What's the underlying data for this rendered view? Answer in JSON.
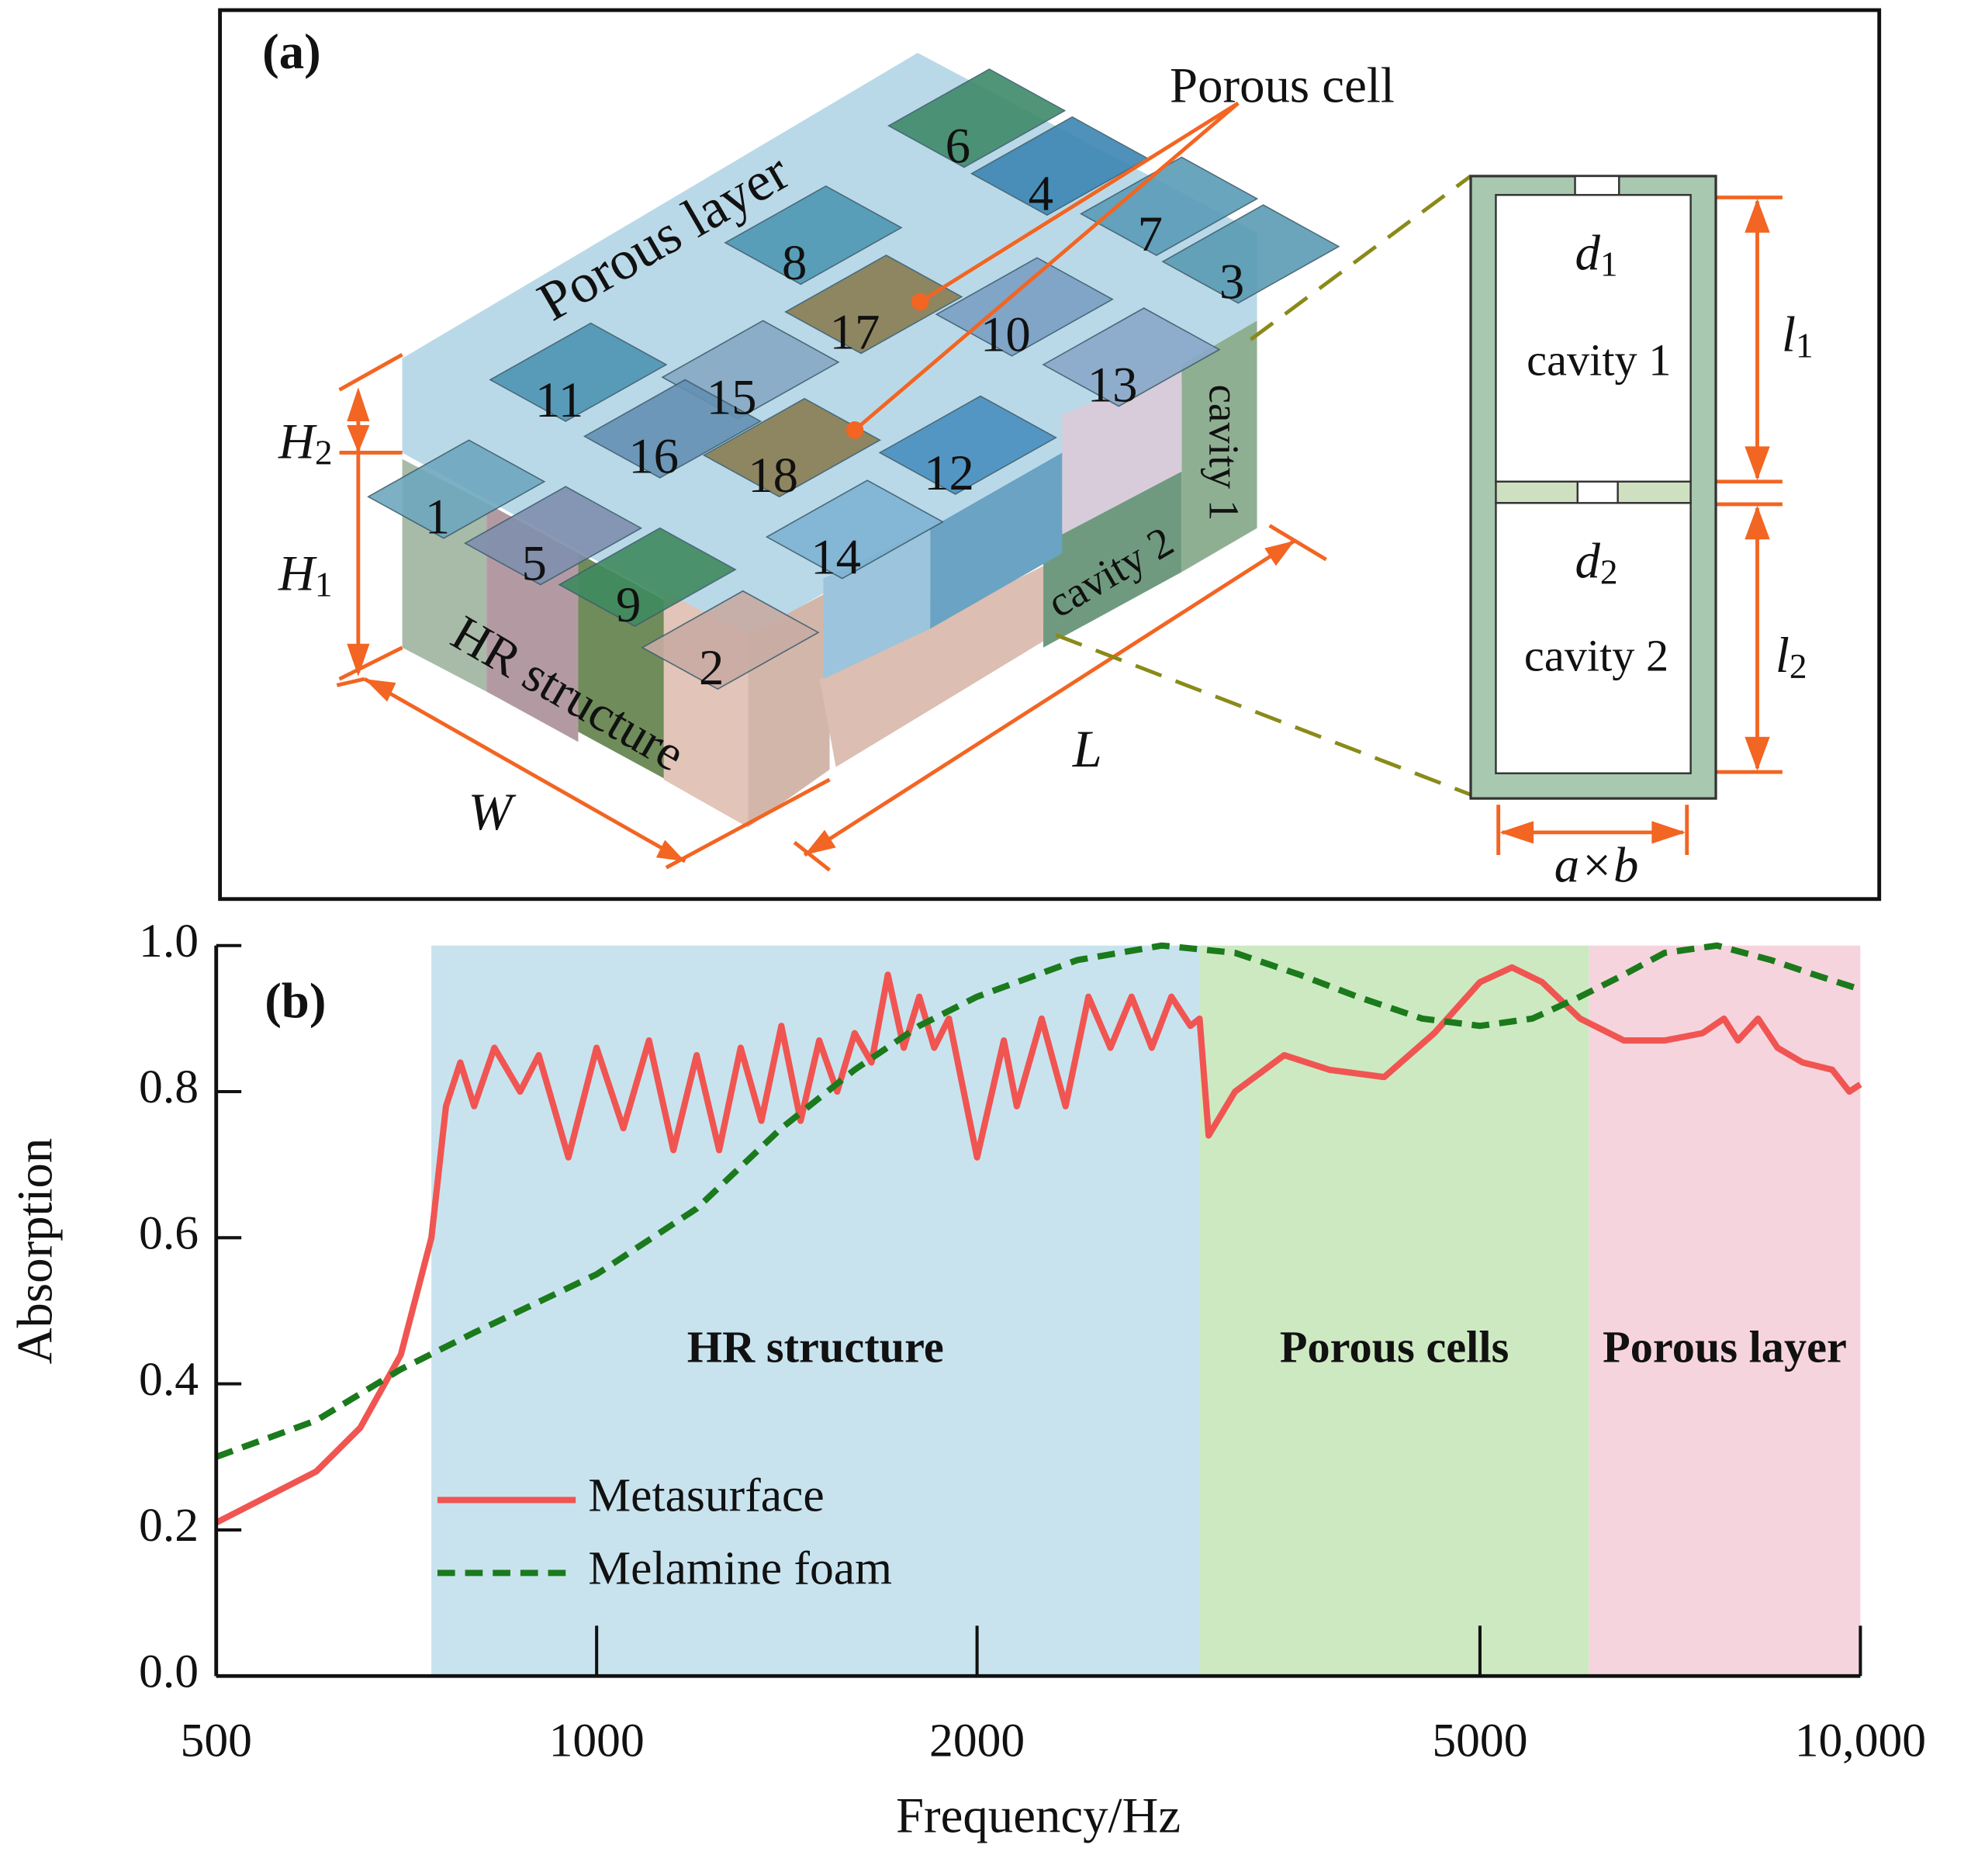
{
  "diagram": {
    "panel_label": "(a)",
    "porous_cell": "Porous cell",
    "porous_layer": "Porous layer",
    "hr_structure": "HR structure",
    "cells": [
      "1",
      "2",
      "3",
      "4",
      "5",
      "6",
      "7",
      "8",
      "9",
      "10",
      "11",
      "12",
      "13",
      "14",
      "15",
      "16",
      "17",
      "18"
    ],
    "cavity_1": "cavity 1",
    "cavity_2": "cavity 2",
    "H2": {
      "main": "H",
      "sub": "2"
    },
    "H1": {
      "main": "H",
      "sub": "1"
    },
    "W": "W",
    "L": "L",
    "detail": {
      "d1": {
        "main": "d",
        "sub": "1"
      },
      "cavity_1": "cavity 1",
      "l1": {
        "main": "l",
        "sub": "1"
      },
      "d2": {
        "main": "d",
        "sub": "2"
      },
      "cavity_2": "cavity 2",
      "l2": {
        "main": "l",
        "sub": "2"
      },
      "size": "a×b"
    }
  },
  "chart_data": {
    "type": "line",
    "panel_label": "(b)",
    "x_label": "Frequency/Hz",
    "y_label": "Absorption",
    "xscale": "log",
    "xlim": [
      500,
      10000
    ],
    "xticks": [
      500,
      1000,
      2000,
      5000,
      {
        "value": 10000,
        "label": "10,000"
      }
    ],
    "ylim": [
      0,
      1
    ],
    "yticks": [
      {
        "value": 0,
        "label": "0.0"
      },
      0.2,
      0.4,
      0.6,
      0.8,
      {
        "value": 1,
        "label": "1.0"
      }
    ],
    "legend": "lower left",
    "regions": [
      {
        "label": "HR structure",
        "from": 740,
        "to": 3000,
        "color": "#c8e3ee"
      },
      {
        "label": "Porous cells",
        "from": 3000,
        "to": 6100,
        "color": "#cde9c2"
      },
      {
        "label": "Porous layer",
        "from": 6100,
        "to": 10000,
        "color": "#f6d4de"
      }
    ],
    "series": [
      {
        "name": "Metasurface",
        "color": "#f05552",
        "style": "solid",
        "x": [
          500,
          600,
          650,
          700,
          740,
          760,
          780,
          800,
          830,
          870,
          900,
          950,
          1000,
          1050,
          1100,
          1150,
          1200,
          1250,
          1300,
          1350,
          1400,
          1450,
          1500,
          1550,
          1600,
          1650,
          1700,
          1750,
          1800,
          1850,
          1900,
          2000,
          2100,
          2150,
          2250,
          2350,
          2450,
          2550,
          2650,
          2750,
          2850,
          2950,
          3000,
          3050,
          3200,
          3500,
          3800,
          4200,
          4600,
          5000,
          5300,
          5600,
          6000,
          6500,
          7000,
          7500,
          7800,
          8000,
          8300,
          8600,
          9000,
          9500,
          9800,
          10000
        ],
        "values": [
          0.21,
          0.28,
          0.34,
          0.44,
          0.6,
          0.78,
          0.84,
          0.78,
          0.86,
          0.8,
          0.85,
          0.71,
          0.86,
          0.75,
          0.87,
          0.72,
          0.85,
          0.72,
          0.86,
          0.76,
          0.89,
          0.76,
          0.87,
          0.8,
          0.88,
          0.84,
          0.96,
          0.86,
          0.93,
          0.86,
          0.9,
          0.71,
          0.87,
          0.78,
          0.9,
          0.78,
          0.93,
          0.86,
          0.93,
          0.86,
          0.93,
          0.89,
          0.9,
          0.74,
          0.8,
          0.85,
          0.83,
          0.82,
          0.88,
          0.95,
          0.97,
          0.95,
          0.9,
          0.87,
          0.87,
          0.88,
          0.9,
          0.87,
          0.9,
          0.86,
          0.84,
          0.83,
          0.8,
          0.81
        ]
      },
      {
        "name": "Melamine foam",
        "color": "#1b7a1b",
        "style": "dashed",
        "x": [
          500,
          600,
          700,
          800,
          1000,
          1200,
          1400,
          1600,
          1800,
          2000,
          2400,
          2800,
          3200,
          3600,
          4000,
          4500,
          5000,
          5500,
          6000,
          6500,
          7000,
          7700,
          8500,
          9200,
          10000
        ],
        "values": [
          0.3,
          0.35,
          0.42,
          0.47,
          0.55,
          0.64,
          0.75,
          0.83,
          0.89,
          0.93,
          0.98,
          1.0,
          0.99,
          0.96,
          0.93,
          0.9,
          0.89,
          0.9,
          0.93,
          0.96,
          0.99,
          1.0,
          0.98,
          0.96,
          0.94
        ]
      }
    ]
  }
}
